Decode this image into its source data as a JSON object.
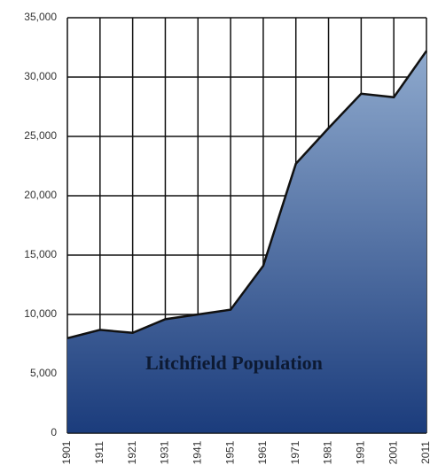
{
  "chart_data": {
    "type": "area",
    "title": "Litchfield Population",
    "x": [
      1901,
      1911,
      1921,
      1931,
      1941,
      1951,
      1961,
      1971,
      1981,
      1991,
      2001,
      2011
    ],
    "values": [
      8000,
      8700,
      8450,
      9600,
      10000,
      10400,
      14100,
      22700,
      25700,
      28600,
      28300,
      32200
    ],
    "color_top": "#8ea9cd",
    "color_bottom": "#1b3c7c",
    "xlim": [
      1901,
      2011
    ],
    "ylim": [
      0,
      35000
    ],
    "yticks": [
      0,
      {
        "value": 5000,
        "label": "5,000"
      },
      {
        "value": 10000,
        "label": "10,000"
      },
      {
        "value": 15000,
        "label": "15,000"
      },
      {
        "value": 20000,
        "label": "20,000"
      },
      {
        "value": 25000,
        "label": "25,000"
      },
      {
        "value": 30000,
        "label": "30,000"
      },
      {
        "value": 35000,
        "label": "35,000"
      }
    ],
    "grid": true
  }
}
